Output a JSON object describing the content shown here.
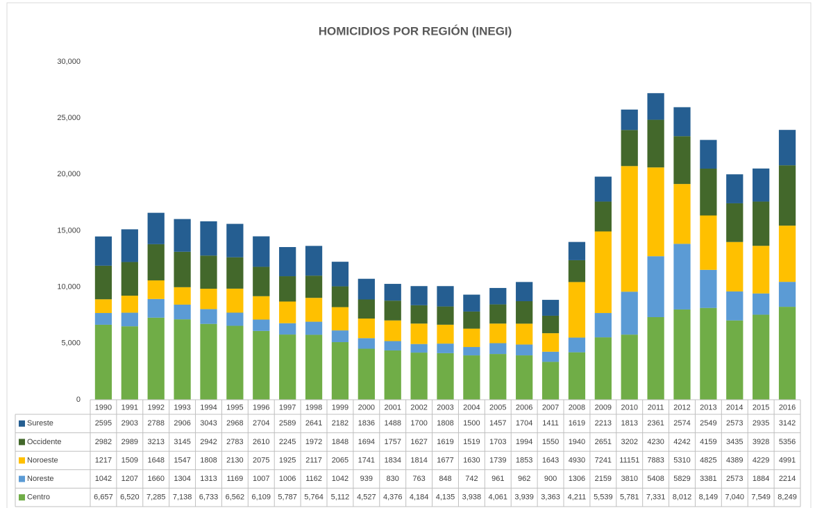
{
  "chart_data": {
    "type": "stacked-bar",
    "title": "HOMICIDIOS POR REGIÓN (INEGI)",
    "categories": [
      "1990",
      "1991",
      "1992",
      "1993",
      "1994",
      "1995",
      "1996",
      "1997",
      "1998",
      "1999",
      "2000",
      "2001",
      "2002",
      "2003",
      "2004",
      "2005",
      "2006",
      "2007",
      "2008",
      "2009",
      "2010",
      "2011",
      "2012",
      "2013",
      "2014",
      "2015",
      "2016"
    ],
    "series": [
      {
        "name": "Centro",
        "color": "#70ad47",
        "values": [
          6657,
          6520,
          7285,
          7138,
          6733,
          6562,
          6109,
          5787,
          5764,
          5112,
          4527,
          4376,
          4184,
          4135,
          3938,
          4061,
          3939,
          3363,
          4211,
          5539,
          5781,
          7331,
          8012,
          8149,
          7040,
          7549,
          8249
        ],
        "value_labels": [
          "6,657",
          "6,520",
          "7,285",
          "7,138",
          "6,733",
          "6,562",
          "6,109",
          "5,787",
          "5,764",
          "5,112",
          "4,527",
          "4,376",
          "4,184",
          "4,135",
          "3,938",
          "4,061",
          "3,939",
          "3,363",
          "4,211",
          "5,539",
          "5,781",
          "7,331",
          "8,012",
          "8,149",
          "7,040",
          "7,549",
          "8,249"
        ]
      },
      {
        "name": "Noreste",
        "color": "#5b9bd5",
        "values": [
          1042,
          1207,
          1660,
          1304,
          1313,
          1169,
          1007,
          1006,
          1162,
          1042,
          939,
          830,
          763,
          848,
          742,
          961,
          962,
          900,
          1306,
          2159,
          3810,
          5408,
          5829,
          3381,
          2573,
          1884,
          2214
        ]
      },
      {
        "name": "Noroeste",
        "color": "#ffc000",
        "values": [
          1217,
          1509,
          1648,
          1547,
          1808,
          2130,
          2075,
          1925,
          2117,
          2065,
          1741,
          1834,
          1814,
          1677,
          1630,
          1739,
          1853,
          1643,
          4930,
          7241,
          11151,
          7883,
          5310,
          4825,
          4389,
          4229,
          4991
        ]
      },
      {
        "name": "Occidente",
        "color": "#43682b",
        "values": [
          2982,
          2989,
          3213,
          3145,
          2942,
          2783,
          2610,
          2245,
          1972,
          1848,
          1694,
          1757,
          1627,
          1619,
          1519,
          1703,
          1994,
          1550,
          1940,
          2651,
          3202,
          4230,
          4242,
          4159,
          3435,
          3928,
          5356
        ]
      },
      {
        "name": "Sureste",
        "color": "#255e91",
        "values": [
          2595,
          2903,
          2788,
          2906,
          3043,
          2968,
          2704,
          2589,
          2641,
          2182,
          1836,
          1488,
          1700,
          1808,
          1500,
          1457,
          1704,
          1411,
          1619,
          2213,
          1813,
          2361,
          2574,
          2549,
          2573,
          2935,
          3142
        ]
      }
    ],
    "ylim": [
      0,
      30000
    ],
    "yticks": [
      0,
      {
        "value": 5000,
        "label": "5,000"
      },
      {
        "value": 10000,
        "label": "10,000"
      },
      {
        "value": 15000,
        "label": "15,000"
      },
      {
        "value": 20000,
        "label": "20,000"
      },
      {
        "value": 25000,
        "label": "25,000"
      },
      {
        "value": 30000,
        "label": "30,000"
      }
    ],
    "grid": false
  }
}
